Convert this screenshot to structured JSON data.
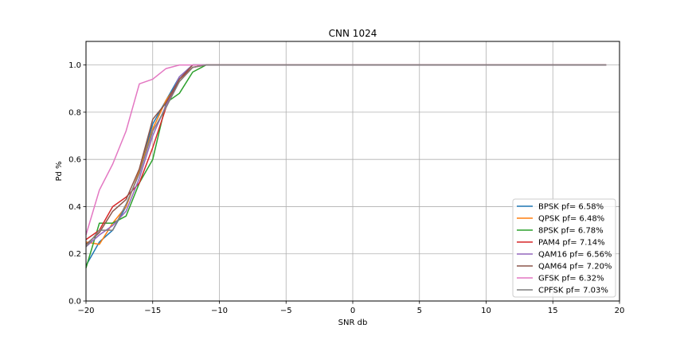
{
  "chart_data": {
    "type": "line",
    "title": "CNN 1024",
    "xlabel": "SNR db",
    "ylabel": "Pd %",
    "xlim": [
      -20,
      20
    ],
    "ylim": [
      0.0,
      1.1
    ],
    "xticks": [
      -20,
      -15,
      -10,
      -5,
      0,
      5,
      10,
      15,
      20
    ],
    "xtick_labels": [
      "−20",
      "−15",
      "−10",
      "−5",
      "0",
      "5",
      "10",
      "15",
      "20"
    ],
    "yticks": [
      0.0,
      0.2,
      0.4,
      0.6,
      0.8,
      1.0
    ],
    "ytick_labels": [
      "0.0",
      "0.2",
      "0.4",
      "0.6",
      "0.8",
      "1.0"
    ],
    "grid": true,
    "legend_position": "lower-right",
    "x": [
      -20,
      -19,
      -18,
      -17,
      -16,
      -15,
      -14,
      -13,
      -12,
      -11,
      -10,
      -9,
      -8,
      -7,
      -6,
      -5,
      -4,
      -3,
      -2,
      -1,
      0,
      1,
      2,
      3,
      4,
      5,
      6,
      7,
      8,
      9,
      10,
      11,
      12,
      13,
      14,
      15,
      16,
      17,
      18,
      19
    ],
    "series": [
      {
        "name": "BPSK pf= 6.58%",
        "color": "#1f77b4",
        "values": [
          0.15,
          0.25,
          0.3,
          0.4,
          0.55,
          0.75,
          0.85,
          0.95,
          1.0,
          1.0,
          1.0,
          1.0,
          1.0,
          1.0,
          1.0,
          1.0,
          1.0,
          1.0,
          1.0,
          1.0,
          1.0,
          1.0,
          1.0,
          1.0,
          1.0,
          1.0,
          1.0,
          1.0,
          1.0,
          1.0,
          1.0,
          1.0,
          1.0,
          1.0,
          1.0,
          1.0,
          1.0,
          1.0,
          1.0,
          1.0
        ]
      },
      {
        "name": "QPSK pf= 6.48%",
        "color": "#ff7f0e",
        "values": [
          0.25,
          0.24,
          0.33,
          0.4,
          0.55,
          0.73,
          0.85,
          0.93,
          0.99,
          1.0,
          1.0,
          1.0,
          1.0,
          1.0,
          1.0,
          1.0,
          1.0,
          1.0,
          1.0,
          1.0,
          1.0,
          1.0,
          1.0,
          1.0,
          1.0,
          1.0,
          1.0,
          1.0,
          1.0,
          1.0,
          1.0,
          1.0,
          1.0,
          1.0,
          1.0,
          1.0,
          1.0,
          1.0,
          1.0,
          1.0
        ]
      },
      {
        "name": "8PSK pf= 6.78%",
        "color": "#2ca02c",
        "values": [
          0.14,
          0.33,
          0.33,
          0.36,
          0.5,
          0.6,
          0.84,
          0.88,
          0.97,
          1.0,
          1.0,
          1.0,
          1.0,
          1.0,
          1.0,
          1.0,
          1.0,
          1.0,
          1.0,
          1.0,
          1.0,
          1.0,
          1.0,
          1.0,
          1.0,
          1.0,
          1.0,
          1.0,
          1.0,
          1.0,
          1.0,
          1.0,
          1.0,
          1.0,
          1.0,
          1.0,
          1.0,
          1.0,
          1.0,
          1.0
        ]
      },
      {
        "name": "PAM4 pf= 7.14%",
        "color": "#d62728",
        "values": [
          0.26,
          0.3,
          0.4,
          0.44,
          0.5,
          0.65,
          0.82,
          0.94,
          0.99,
          1.0,
          1.0,
          1.0,
          1.0,
          1.0,
          1.0,
          1.0,
          1.0,
          1.0,
          1.0,
          1.0,
          1.0,
          1.0,
          1.0,
          1.0,
          1.0,
          1.0,
          1.0,
          1.0,
          1.0,
          1.0,
          1.0,
          1.0,
          1.0,
          1.0,
          1.0,
          1.0,
          1.0,
          1.0,
          1.0,
          1.0
        ]
      },
      {
        "name": "QAM16 pf= 6.56%",
        "color": "#9467bd",
        "values": [
          0.23,
          0.28,
          0.32,
          0.38,
          0.52,
          0.7,
          0.83,
          0.95,
          1.0,
          1.0,
          1.0,
          1.0,
          1.0,
          1.0,
          1.0,
          1.0,
          1.0,
          1.0,
          1.0,
          1.0,
          1.0,
          1.0,
          1.0,
          1.0,
          1.0,
          1.0,
          1.0,
          1.0,
          1.0,
          1.0,
          1.0,
          1.0,
          1.0,
          1.0,
          1.0,
          1.0,
          1.0,
          1.0,
          1.0,
          1.0
        ]
      },
      {
        "name": "QAM64 pf= 7.20%",
        "color": "#8c564b",
        "values": [
          0.24,
          0.29,
          0.38,
          0.43,
          0.56,
          0.77,
          0.84,
          0.94,
          1.0,
          1.0,
          1.0,
          1.0,
          1.0,
          1.0,
          1.0,
          1.0,
          1.0,
          1.0,
          1.0,
          1.0,
          1.0,
          1.0,
          1.0,
          1.0,
          1.0,
          1.0,
          1.0,
          1.0,
          1.0,
          1.0,
          1.0,
          1.0,
          1.0,
          1.0,
          1.0,
          1.0,
          1.0,
          1.0,
          1.0,
          1.0
        ]
      },
      {
        "name": "GFSK pf= 6.32%",
        "color": "#e377c2",
        "values": [
          0.28,
          0.47,
          0.58,
          0.72,
          0.92,
          0.94,
          0.985,
          1.0,
          1.0,
          1.0,
          1.0,
          1.0,
          1.0,
          1.0,
          1.0,
          1.0,
          1.0,
          1.0,
          1.0,
          1.0,
          1.0,
          1.0,
          1.0,
          1.0,
          1.0,
          1.0,
          1.0,
          1.0,
          1.0,
          1.0,
          1.0,
          1.0,
          1.0,
          1.0,
          1.0,
          1.0,
          1.0,
          1.0,
          1.0,
          1.0
        ]
      },
      {
        "name": "CPFSK pf= 7.03%",
        "color": "#7f7f7f",
        "values": [
          0.23,
          0.3,
          0.3,
          0.41,
          0.54,
          0.72,
          0.82,
          0.93,
          0.99,
          1.0,
          1.0,
          1.0,
          1.0,
          1.0,
          1.0,
          1.0,
          1.0,
          1.0,
          1.0,
          1.0,
          1.0,
          1.0,
          1.0,
          1.0,
          1.0,
          1.0,
          1.0,
          1.0,
          1.0,
          1.0,
          1.0,
          1.0,
          1.0,
          1.0,
          1.0,
          1.0,
          1.0,
          1.0,
          1.0,
          1.0
        ]
      }
    ]
  }
}
